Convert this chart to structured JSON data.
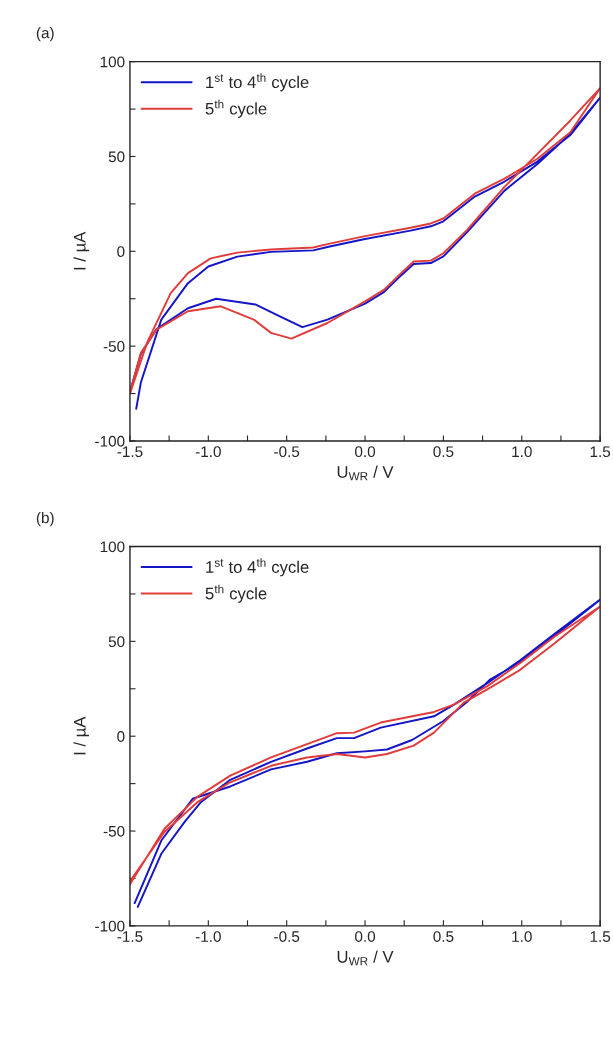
{
  "chart_data": [
    {
      "type": "line",
      "title": "(a)",
      "xlabel": "U$_{WR}$ / V",
      "ylabel": "I / µA",
      "xlim": [
        -1.5,
        1.5
      ],
      "ylim": [
        -100,
        100
      ],
      "xticks": [
        {
          "value": -1.5,
          "label": "-1.5"
        },
        {
          "value": -1.25,
          "label": null
        },
        {
          "value": -1.0,
          "label": "-1.0"
        },
        {
          "value": -0.75,
          "label": null
        },
        {
          "value": -0.5,
          "label": "-0.5"
        },
        {
          "value": -0.25,
          "label": null
        },
        {
          "value": 0.0,
          "label": "0.0"
        },
        {
          "value": 0.25,
          "label": null
        },
        {
          "value": 0.5,
          "label": "0.5"
        },
        {
          "value": 0.75,
          "label": null
        },
        {
          "value": 1.0,
          "label": "1.0"
        },
        {
          "value": 1.25,
          "label": null
        },
        {
          "value": 1.5,
          "label": "1.5"
        }
      ],
      "yticks": [
        {
          "value": -100,
          "label": "-100"
        },
        {
          "value": -75,
          "label": null
        },
        {
          "value": -50,
          "label": "-50"
        },
        {
          "value": -25,
          "label": null
        },
        {
          "value": 0,
          "label": "0"
        },
        {
          "value": 25,
          "label": null
        },
        {
          "value": 50,
          "label": "50"
        },
        {
          "value": 75,
          "label": null
        },
        {
          "value": 100,
          "label": "100"
        }
      ],
      "legend": "top left",
      "grid": false,
      "marker": "none",
      "line_style": "solid",
      "series": [
        {
          "name": "1$^{st}$ to 4$^{th}$ cycle",
          "color": "#1515c8",
          "x": [
            -1.46,
            -1.43,
            -1.3,
            -1.13,
            -1.0,
            -0.815,
            -0.6,
            -0.33,
            -0.24,
            0,
            0.29,
            0.42,
            0.5,
            0.7,
            0.89,
            1.1,
            1.31,
            1.5,
            1.31,
            1.1,
            0.89,
            0.65,
            0.5,
            0.42,
            0.31,
            0.23,
            0.12,
            0,
            -0.24,
            -0.4,
            -0.55,
            -0.7,
            -0.95,
            -1.13,
            -1.33,
            -1.43,
            -1.5
          ],
          "values": [
            -83,
            -69,
            -36,
            -16.8,
            -8,
            -2.8,
            -0.3,
            0.5,
            2.3,
            6.5,
            10.9,
            13.2,
            15.8,
            28.9,
            36.8,
            47.3,
            61.3,
            81,
            62,
            46,
            32,
            10,
            -2.7,
            -6.2,
            -6.7,
            -12.7,
            -21.5,
            -27.6,
            -36,
            -40,
            -34,
            -28,
            -25,
            -30,
            -41,
            -54,
            -74
          ]
        },
        {
          "name": "5$^{th}$ cycle",
          "color": "#e03c3c",
          "x": [
            -1.5,
            -1.39,
            -1.24,
            -1.13,
            -0.985,
            -0.815,
            -0.6,
            -0.33,
            -0.24,
            0,
            0.29,
            0.42,
            0.5,
            0.7,
            0.89,
            1.1,
            1.31,
            1.5,
            1.31,
            1.1,
            0.89,
            0.65,
            0.5,
            0.42,
            0.31,
            0.23,
            0.12,
            0,
            -0.24,
            -0.47,
            -0.6,
            -0.71,
            -0.92,
            -1.13,
            -1.33,
            -1.43,
            -1.5
          ],
          "values": [
            -75,
            -48,
            -22,
            -11.5,
            -3.7,
            -0.7,
            1,
            2,
            3.8,
            8,
            12.4,
            14.7,
            17.3,
            30.4,
            38.3,
            48.8,
            62.8,
            86,
            69,
            51.4,
            34,
            11.2,
            -1,
            -4.9,
            -5.4,
            -11.5,
            -20.3,
            -26.4,
            -37.8,
            -46,
            -43,
            -36,
            -29,
            -31.6,
            -41.3,
            -53.5,
            -74.5
          ]
        }
      ]
    },
    {
      "type": "line",
      "title": "(b)",
      "xlabel": "U$_{WR}$ / V",
      "ylabel": "I / µA",
      "xlim": [
        -1.5,
        1.5
      ],
      "ylim": [
        -100,
        100
      ],
      "xticks": [
        {
          "value": -1.5,
          "label": "-1.5"
        },
        {
          "value": -1.25,
          "label": null
        },
        {
          "value": -1.0,
          "label": "-1.0"
        },
        {
          "value": -0.75,
          "label": null
        },
        {
          "value": -0.5,
          "label": "-0.5"
        },
        {
          "value": -0.25,
          "label": null
        },
        {
          "value": 0.0,
          "label": "0.0"
        },
        {
          "value": 0.25,
          "label": null
        },
        {
          "value": 0.5,
          "label": "0.5"
        },
        {
          "value": 0.75,
          "label": null
        },
        {
          "value": 1.0,
          "label": "1.0"
        },
        {
          "value": 1.25,
          "label": null
        },
        {
          "value": 1.5,
          "label": "1.5"
        }
      ],
      "yticks": [
        {
          "value": -100,
          "label": "-100"
        },
        {
          "value": -75,
          "label": null
        },
        {
          "value": -50,
          "label": "-50"
        },
        {
          "value": -25,
          "label": null
        },
        {
          "value": 0,
          "label": "0"
        },
        {
          "value": 25,
          "label": null
        },
        {
          "value": 50,
          "label": "50"
        },
        {
          "value": 75,
          "label": null
        },
        {
          "value": 100,
          "label": "100"
        }
      ],
      "legend": "top left",
      "grid": false,
      "marker": "none",
      "line_style": "solid",
      "series": [
        {
          "name": "1$^{st}$ to 4$^{th}$ cycle",
          "color": "#1515c8",
          "x": [
            -1.45,
            -1.3,
            -1.15,
            -1.05,
            -0.86,
            -0.6,
            -0.37,
            -0.18,
            -0.07,
            0.1,
            0.44,
            0.57,
            0.78,
            0.99,
            1.21,
            1.5,
            1.21,
            0.99,
            0.8,
            0.65,
            0.5,
            0.3,
            0.14,
            0,
            -0.18,
            -0.37,
            -0.6,
            -0.86,
            -1.1,
            -1.3,
            -1.47
          ],
          "values": [
            -90,
            -62,
            -45,
            -35,
            -23,
            -13.5,
            -6.5,
            -1,
            -1,
            4.5,
            10.5,
            16.8,
            28,
            40,
            54,
            72,
            53,
            39,
            30,
            18,
            8,
            -2,
            -7,
            -8,
            -9,
            -13.5,
            -17.5,
            -26.5,
            -33,
            -55,
            -88
          ]
        },
        {
          "name": "5$^{th}$ cycle",
          "color": "#e03c3c",
          "x": [
            -1.5,
            -1.28,
            -1.07,
            -0.86,
            -0.6,
            -0.37,
            -0.18,
            -0.07,
            0.1,
            0.44,
            0.57,
            0.78,
            0.99,
            1.21,
            1.5,
            1.21,
            0.99,
            0.78,
            0.63,
            0.44,
            0.31,
            0.14,
            0,
            -0.18,
            -0.37,
            -0.6,
            -0.86,
            -1.07,
            -1.28,
            -1.5
          ],
          "values": [
            -78,
            -48.8,
            -32,
            -20.8,
            -11.2,
            -4.2,
            1.6,
            1.9,
            7.2,
            12.8,
            16.8,
            26.4,
            38.6,
            52.6,
            68.4,
            49,
            35,
            24.7,
            17.7,
            1.9,
            -5,
            -9.4,
            -11.2,
            -9.4,
            -11.2,
            -15.6,
            -24.3,
            -34.8,
            -50.5,
            -76.5
          ]
        }
      ]
    }
  ]
}
